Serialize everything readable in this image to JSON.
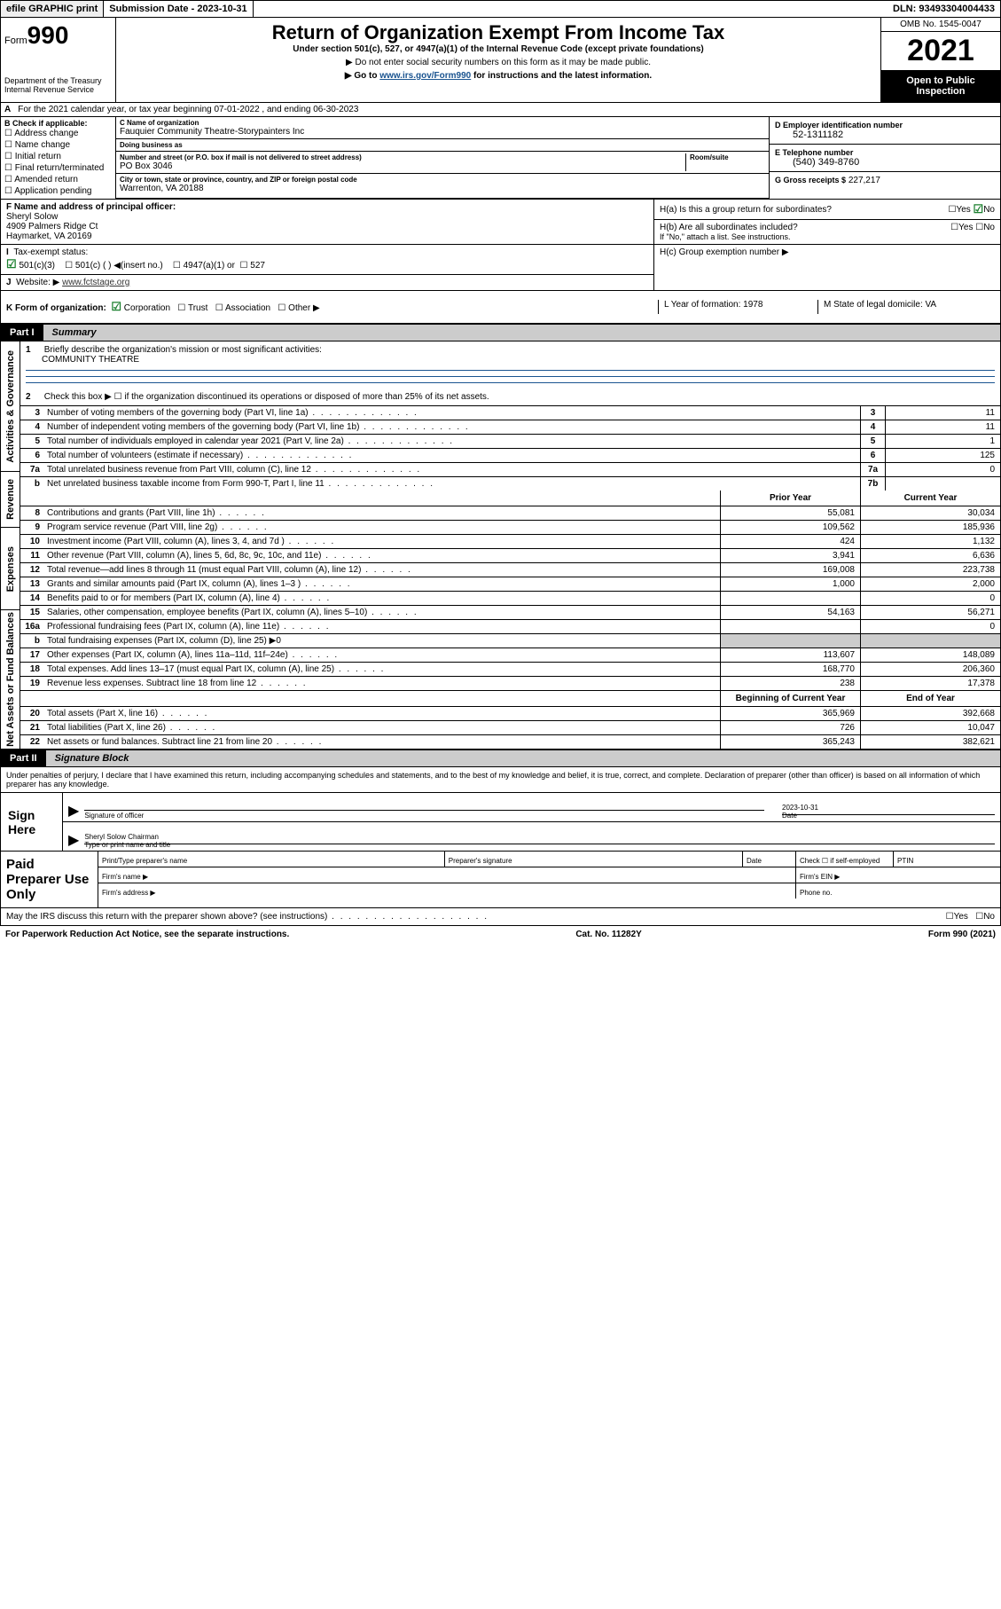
{
  "top": {
    "efile": "efile GRAPHIC print",
    "sub_label": "Submission Date - ",
    "sub_date": "2023-10-31",
    "dln": "DLN: 93493304004433"
  },
  "hdr": {
    "form": "Form",
    "num": "990",
    "dept": "Department of the Treasury\nInternal Revenue Service",
    "title": "Return of Organization Exempt From Income Tax",
    "sub": "Under section 501(c), 527, or 4947(a)(1) of the Internal Revenue Code (except private foundations)",
    "note1": "▶ Do not enter social security numbers on this form as it may be made public.",
    "note2_pre": "▶ Go to ",
    "note2_link": "www.irs.gov/Form990",
    "note2_post": " for instructions and the latest information.",
    "omb": "OMB No. 1545-0047",
    "year": "2021",
    "inspect": "Open to Public Inspection"
  },
  "rowA": {
    "lbl": "A",
    "txt": "For the 2021 calendar year, or tax year beginning 07-01-2022    , and ending 06-30-2023"
  },
  "boxB": {
    "hdr": "B Check if applicable:",
    "opts": [
      "Address change",
      "Name change",
      "Initial return",
      "Final return/terminated",
      "Amended return",
      "Application pending"
    ]
  },
  "boxC": {
    "name_lbl": "C Name of organization",
    "name": "Fauquier Community Theatre-Storypainters Inc",
    "dba_lbl": "Doing business as",
    "dba": "",
    "street_lbl": "Number and street (or P.O. box if mail is not delivered to street address)",
    "room_lbl": "Room/suite",
    "street": "PO Box 3046",
    "city_lbl": "City or town, state or province, country, and ZIP or foreign postal code",
    "city": "Warrenton, VA  20188"
  },
  "boxD": {
    "lbl": "D Employer identification number",
    "val": "52-1311182"
  },
  "boxE": {
    "lbl": "E Telephone number",
    "val": "(540) 349-8760"
  },
  "boxG": {
    "lbl": "G Gross receipts $",
    "val": "227,217"
  },
  "boxF": {
    "lbl": "F Name and address of principal officer:",
    "line1": "Sheryl Solow",
    "line2": "4909 Palmers Ridge Ct",
    "line3": "Haymarket, VA  20169"
  },
  "boxH": {
    "a_lbl": "H(a)  Is this a group return for subordinates?",
    "b_lbl": "H(b)  Are all subordinates included?",
    "b_note": "If \"No,\" attach a list. See instructions.",
    "c_lbl": "H(c)  Group exemption number ▶"
  },
  "boxI": {
    "lbl": "I",
    "txt": "Tax-exempt status:",
    "c1": "501(c)(3)",
    "c2": "501(c) (  ) ◀(insert no.)",
    "c3": "4947(a)(1) or",
    "c4": "527"
  },
  "boxJ": {
    "lbl": "J",
    "txt": "Website: ▶",
    "val": "www.fctstage.org"
  },
  "rowK": {
    "k": "K Form of organization:",
    "opts": [
      "Corporation",
      "Trust",
      "Association",
      "Other ▶"
    ],
    "l": "L Year of formation: 1978",
    "m": "M State of legal domicile: VA"
  },
  "part1": {
    "name": "Part I",
    "title": "Summary"
  },
  "summary": {
    "line1_lbl": "1",
    "line1_txt": "Briefly describe the organization's mission or most significant activities:",
    "mission": "COMMUNITY THEATRE",
    "line2_lbl": "2",
    "line2_txt": "Check this box ▶ ☐  if the organization discontinued its operations or disposed of more than 25% of its net assets.",
    "rows_num": [
      {
        "n": "3",
        "t": "Number of voting members of the governing body (Part VI, line 1a)",
        "box": "3",
        "v": "11"
      },
      {
        "n": "4",
        "t": "Number of independent voting members of the governing body (Part VI, line 1b)",
        "box": "4",
        "v": "11"
      },
      {
        "n": "5",
        "t": "Total number of individuals employed in calendar year 2021 (Part V, line 2a)",
        "box": "5",
        "v": "1"
      },
      {
        "n": "6",
        "t": "Total number of volunteers (estimate if necessary)",
        "box": "6",
        "v": "125"
      },
      {
        "n": "7a",
        "t": "Total unrelated business revenue from Part VIII, column (C), line 12",
        "box": "7a",
        "v": "0"
      },
      {
        "n": "b",
        "t": "Net unrelated business taxable income from Form 990-T, Part I, line 11",
        "box": "7b",
        "v": ""
      }
    ],
    "col_hdr1": "Prior Year",
    "col_hdr2": "Current Year",
    "revenue": [
      {
        "n": "8",
        "t": "Contributions and grants (Part VIII, line 1h)",
        "v1": "55,081",
        "v2": "30,034"
      },
      {
        "n": "9",
        "t": "Program service revenue (Part VIII, line 2g)",
        "v1": "109,562",
        "v2": "185,936"
      },
      {
        "n": "10",
        "t": "Investment income (Part VIII, column (A), lines 3, 4, and 7d )",
        "v1": "424",
        "v2": "1,132"
      },
      {
        "n": "11",
        "t": "Other revenue (Part VIII, column (A), lines 5, 6d, 8c, 9c, 10c, and 11e)",
        "v1": "3,941",
        "v2": "6,636"
      },
      {
        "n": "12",
        "t": "Total revenue—add lines 8 through 11 (must equal Part VIII, column (A), line 12)",
        "v1": "169,008",
        "v2": "223,738"
      }
    ],
    "expenses": [
      {
        "n": "13",
        "t": "Grants and similar amounts paid (Part IX, column (A), lines 1–3 )",
        "v1": "1,000",
        "v2": "2,000"
      },
      {
        "n": "14",
        "t": "Benefits paid to or for members (Part IX, column (A), line 4)",
        "v1": "",
        "v2": "0"
      },
      {
        "n": "15",
        "t": "Salaries, other compensation, employee benefits (Part IX, column (A), lines 5–10)",
        "v1": "54,163",
        "v2": "56,271"
      },
      {
        "n": "16a",
        "t": "Professional fundraising fees (Part IX, column (A), line 11e)",
        "v1": "",
        "v2": "0"
      }
    ],
    "line16b": {
      "n": "b",
      "t": "Total fundraising expenses (Part IX, column (D), line 25) ▶0"
    },
    "expenses2": [
      {
        "n": "17",
        "t": "Other expenses (Part IX, column (A), lines 11a–11d, 11f–24e)",
        "v1": "113,607",
        "v2": "148,089"
      },
      {
        "n": "18",
        "t": "Total expenses. Add lines 13–17 (must equal Part IX, column (A), line 25)",
        "v1": "168,770",
        "v2": "206,360"
      },
      {
        "n": "19",
        "t": "Revenue less expenses. Subtract line 18 from line 12",
        "v1": "238",
        "v2": "17,378"
      }
    ],
    "col_hdr3": "Beginning of Current Year",
    "col_hdr4": "End of Year",
    "balances": [
      {
        "n": "20",
        "t": "Total assets (Part X, line 16)",
        "v1": "365,969",
        "v2": "392,668"
      },
      {
        "n": "21",
        "t": "Total liabilities (Part X, line 26)",
        "v1": "726",
        "v2": "10,047"
      },
      {
        "n": "22",
        "t": "Net assets or fund balances. Subtract line 21 from line 20",
        "v1": "365,243",
        "v2": "382,621"
      }
    ],
    "rot": {
      "ag": "Activities & Governance",
      "rev": "Revenue",
      "exp": "Expenses",
      "nab": "Net Assets or Fund Balances"
    }
  },
  "part2": {
    "name": "Part II",
    "title": "Signature Block"
  },
  "sig": {
    "para": "Under penalties of perjury, I declare that I have examined this return, including accompanying schedules and statements, and to the best of my knowledge and belief, it is true, correct, and complete. Declaration of preparer (other than officer) is based on all information of which preparer has any knowledge.",
    "here": "Sign Here",
    "sig_of_officer": "Signature of officer",
    "date_lbl": "Date",
    "date": "2023-10-31",
    "name": "Sheryl Solow Chairman",
    "name_lbl": "Type or print name and title"
  },
  "paid": {
    "left": "Paid Preparer Use Only",
    "r1c1": "Print/Type preparer's name",
    "r1c2": "Preparer's signature",
    "r1c3": "Date",
    "r1c4a": "Check ☐ if self-employed",
    "r1c5": "PTIN",
    "r2c1": "Firm's name   ▶",
    "r2c2": "Firm's EIN ▶",
    "r3c1": "Firm's address ▶",
    "r3c2": "Phone no."
  },
  "bottom": {
    "q": "May the IRS discuss this return with the preparer shown above? (see instructions)"
  },
  "footer": {
    "l": "For Paperwork Reduction Act Notice, see the separate instructions.",
    "m": "Cat. No. 11282Y",
    "r": "Form 990 (2021)"
  },
  "glyph": {
    "yes": "Yes",
    "no": "No",
    "unchecked": "☐",
    "checked": "☑"
  }
}
